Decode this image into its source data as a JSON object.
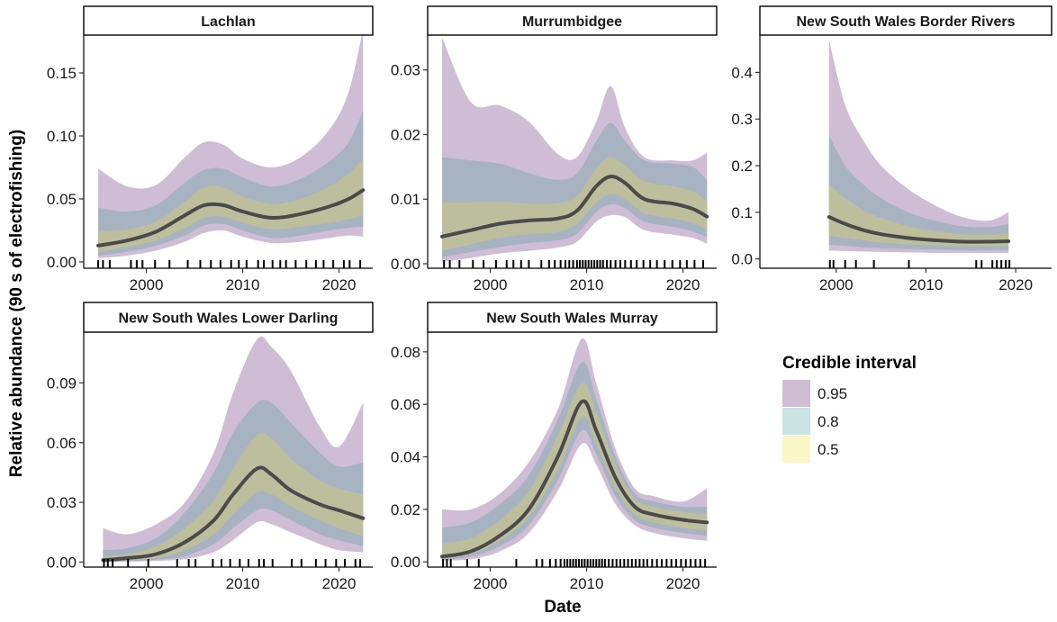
{
  "chart_data": {
    "type": "area",
    "xlabel": "Date",
    "ylabel": "Relative abundance (90 s of electrofishing)",
    "legend": {
      "title": "Credible interval",
      "position": "right",
      "items": [
        {
          "label": "0.95",
          "color": "#cfbdd5"
        },
        {
          "label": "0.8",
          "color": "#c9e4e4"
        },
        {
          "label": "0.5",
          "color": "#fbf6c6"
        }
      ]
    },
    "colors": {
      "band95": "#cfbdd5",
      "band80": "#a8b3c2",
      "band50": "#bcbe9c",
      "line": "#4a4a4a",
      "axis": "#000000"
    },
    "panels": [
      {
        "title": "Lachlan",
        "xlim": [
          1993.5,
          2023.5
        ],
        "ylim": [
          -0.005,
          0.18
        ],
        "xticks": [
          2000,
          2010,
          2020
        ],
        "xtick_labels": [
          "2000",
          "2010",
          "2020"
        ],
        "yticks": [
          0,
          0.05,
          0.1,
          0.15
        ],
        "ytick_labels": [
          "0.00",
          "0.05",
          "0.10",
          "0.15"
        ],
        "x": [
          1995,
          1998,
          2001,
          2004,
          2006,
          2008,
          2010,
          2013,
          2016,
          2019,
          2021,
          2022.5
        ],
        "median": [
          0.013,
          0.017,
          0.024,
          0.037,
          0.045,
          0.045,
          0.04,
          0.035,
          0.038,
          0.044,
          0.05,
          0.057
        ],
        "lo50": [
          0.008,
          0.012,
          0.017,
          0.027,
          0.035,
          0.036,
          0.031,
          0.026,
          0.028,
          0.031,
          0.034,
          0.037
        ],
        "hi50": [
          0.024,
          0.026,
          0.032,
          0.048,
          0.059,
          0.059,
          0.052,
          0.046,
          0.05,
          0.06,
          0.07,
          0.082
        ],
        "lo80": [
          0.005,
          0.008,
          0.013,
          0.021,
          0.029,
          0.03,
          0.025,
          0.019,
          0.021,
          0.025,
          0.027,
          0.028
        ],
        "hi80": [
          0.043,
          0.04,
          0.045,
          0.063,
          0.073,
          0.074,
          0.067,
          0.06,
          0.066,
          0.08,
          0.095,
          0.12
        ],
        "lo95": [
          0.003,
          0.005,
          0.009,
          0.016,
          0.023,
          0.025,
          0.02,
          0.015,
          0.016,
          0.019,
          0.021,
          0.02
        ],
        "hi95": [
          0.074,
          0.06,
          0.061,
          0.083,
          0.095,
          0.093,
          0.082,
          0.075,
          0.083,
          0.105,
          0.135,
          0.185
        ],
        "rug": [
          1995.0,
          1995.5,
          1996.2,
          1998.4,
          1999.0,
          1999.6,
          2000.9,
          2002.4,
          2004.3,
          2005.6,
          2006.7,
          2007.7,
          2008.8,
          2009.6,
          2010.4,
          2011.6,
          2012.2,
          2013.1,
          2013.9,
          2014.5,
          2015.5,
          2016.6,
          2017.6,
          2018.4,
          2019.4,
          2020.5,
          2021.1,
          2022.2
        ]
      },
      {
        "title": "Murrumbidgee",
        "xlim": [
          1993.5,
          2023.5
        ],
        "ylim": [
          -0.0007,
          0.0354
        ],
        "xticks": [
          2000,
          2010,
          2020
        ],
        "xtick_labels": [
          "2000",
          "2010",
          "2020"
        ],
        "yticks": [
          0,
          0.01,
          0.02,
          0.03
        ],
        "ytick_labels": [
          "0.00",
          "0.01",
          "0.02",
          "0.03"
        ],
        "x": [
          1995,
          1998,
          2001,
          2004,
          2007,
          2009,
          2011,
          2012.5,
          2014,
          2016,
          2019,
          2021,
          2022.5
        ],
        "median": [
          0.0042,
          0.0052,
          0.0062,
          0.0067,
          0.007,
          0.0082,
          0.012,
          0.0135,
          0.0125,
          0.01,
          0.0093,
          0.0085,
          0.0073
        ],
        "lo50": [
          0.002,
          0.003,
          0.004,
          0.0046,
          0.0049,
          0.0062,
          0.0095,
          0.0108,
          0.01,
          0.0078,
          0.007,
          0.0063,
          0.0053
        ],
        "hi50": [
          0.0095,
          0.0095,
          0.0096,
          0.0093,
          0.0094,
          0.0105,
          0.0148,
          0.0165,
          0.0152,
          0.0128,
          0.012,
          0.0112,
          0.0098
        ],
        "lo80": [
          0.001,
          0.0018,
          0.0026,
          0.0032,
          0.0036,
          0.0047,
          0.008,
          0.0092,
          0.0086,
          0.0065,
          0.0057,
          0.005,
          0.0041
        ],
        "hi80": [
          0.0165,
          0.016,
          0.0155,
          0.014,
          0.013,
          0.014,
          0.019,
          0.0218,
          0.019,
          0.016,
          0.0155,
          0.015,
          0.013
        ],
        "lo95": [
          0.0003,
          0.0009,
          0.0016,
          0.002,
          0.0025,
          0.0034,
          0.0065,
          0.0075,
          0.0072,
          0.0052,
          0.0045,
          0.004,
          0.0031
        ],
        "hi95": [
          0.035,
          0.025,
          0.0245,
          0.022,
          0.017,
          0.0165,
          0.022,
          0.0275,
          0.021,
          0.0165,
          0.016,
          0.016,
          0.0172
        ],
        "rug": [
          1995.2,
          1995.8,
          1996.8,
          1998.2,
          1999.3,
          2000.6,
          2001.7,
          2002.4,
          2003.2,
          2004.0,
          2005.3,
          2006.1,
          2006.7,
          2007.3,
          2007.8,
          2008.2,
          2008.6,
          2009.0,
          2009.3,
          2009.6,
          2009.9,
          2010.2,
          2010.5,
          2010.8,
          2011.1,
          2011.4,
          2011.7,
          2012.1,
          2012.5,
          2013.0,
          2013.5,
          2014.0,
          2014.6,
          2015.2,
          2015.9,
          2016.6,
          2017.3,
          2018.1,
          2018.9,
          2019.7,
          2020.4,
          2021.2,
          2022.1
        ]
      },
      {
        "title": "New South Wales Border Rivers",
        "xlim": [
          1991.5,
          2024.0
        ],
        "ylim": [
          -0.02,
          0.48
        ],
        "xticks": [
          2000,
          2010,
          2020
        ],
        "xtick_labels": [
          "2000",
          "2010",
          "2020"
        ],
        "yticks": [
          0,
          0.1,
          0.2,
          0.3,
          0.4
        ],
        "ytick_labels": [
          "0.0",
          "0.1",
          "0.2",
          "0.3",
          "0.4"
        ],
        "x": [
          1999.2,
          2001,
          2003,
          2005,
          2008,
          2011,
          2014,
          2017,
          2019.2
        ],
        "median": [
          0.09,
          0.075,
          0.062,
          0.053,
          0.045,
          0.04,
          0.037,
          0.037,
          0.038
        ],
        "lo50": [
          0.05,
          0.045,
          0.04,
          0.035,
          0.031,
          0.029,
          0.027,
          0.027,
          0.027
        ],
        "hi50": [
          0.16,
          0.13,
          0.105,
          0.088,
          0.07,
          0.06,
          0.053,
          0.052,
          0.055
        ],
        "lo80": [
          0.03,
          0.028,
          0.025,
          0.023,
          0.021,
          0.02,
          0.019,
          0.019,
          0.019
        ],
        "hi80": [
          0.265,
          0.2,
          0.16,
          0.13,
          0.1,
          0.082,
          0.07,
          0.068,
          0.075
        ],
        "lo95": [
          0.018,
          0.017,
          0.016,
          0.015,
          0.014,
          0.013,
          0.013,
          0.013,
          0.013
        ],
        "hi95": [
          0.47,
          0.33,
          0.255,
          0.2,
          0.15,
          0.115,
          0.09,
          0.082,
          0.1
        ],
        "rug": [
          1999.3,
          1999.7,
          2001.0,
          2002.2,
          2004.2,
          2008.1,
          2015.6,
          2016.2,
          2017.4,
          2017.9,
          2018.4,
          2018.9,
          2019.3
        ]
      },
      {
        "title": "New South Wales Lower Darling",
        "xlim": [
          1993.5,
          2023.5
        ],
        "ylim": [
          -0.0025,
          0.1155
        ],
        "xticks": [
          2000,
          2010,
          2020
        ],
        "xtick_labels": [
          "2000",
          "2010",
          "2020"
        ],
        "yticks": [
          0,
          0.03,
          0.06,
          0.09
        ],
        "ytick_labels": [
          "0.00",
          "0.03",
          "0.06",
          "0.09"
        ],
        "x": [
          1995.5,
          1998,
          2001,
          2004,
          2007,
          2009,
          2011.5,
          2013,
          2015,
          2018,
          2020,
          2022.5
        ],
        "median": [
          0.001,
          0.002,
          0.004,
          0.01,
          0.021,
          0.034,
          0.047,
          0.044,
          0.036,
          0.029,
          0.026,
          0.022
        ],
        "lo50": [
          0.0005,
          0.001,
          0.002,
          0.006,
          0.014,
          0.024,
          0.035,
          0.034,
          0.028,
          0.021,
          0.017,
          0.013
        ],
        "hi50": [
          0.003,
          0.004,
          0.008,
          0.017,
          0.031,
          0.047,
          0.064,
          0.062,
          0.052,
          0.041,
          0.037,
          0.034
        ],
        "lo80": [
          0.0002,
          0.0005,
          0.0012,
          0.003,
          0.009,
          0.017,
          0.026,
          0.026,
          0.021,
          0.014,
          0.011,
          0.008
        ],
        "hi80": [
          0.006,
          0.007,
          0.012,
          0.025,
          0.045,
          0.065,
          0.08,
          0.08,
          0.07,
          0.055,
          0.048,
          0.05
        ],
        "lo95": [
          0.0,
          0.0002,
          0.0006,
          0.0015,
          0.005,
          0.011,
          0.02,
          0.019,
          0.015,
          0.009,
          0.006,
          0.005
        ],
        "hi95": [
          0.017,
          0.014,
          0.019,
          0.03,
          0.055,
          0.085,
          0.112,
          0.108,
          0.096,
          0.068,
          0.058,
          0.08
        ],
        "rug": [
          1995.6,
          1996.0,
          1996.5,
          1998.1,
          2000.2,
          2003.2,
          2004.4,
          2005.1,
          2006.9,
          2007.8,
          2008.7,
          2009.7,
          2010.6,
          2011.7,
          2012.2,
          2013.1,
          2015.1,
          2016.1,
          2017.6,
          2018.6,
          2019.7,
          2020.6,
          2021.7,
          2022.2
        ]
      },
      {
        "title": "New South Wales Murray",
        "xlim": [
          1993.5,
          2023.5
        ],
        "ylim": [
          -0.002,
          0.0875
        ],
        "xticks": [
          2000,
          2010,
          2020
        ],
        "xtick_labels": [
          "2000",
          "2010",
          "2020"
        ],
        "yticks": [
          0,
          0.02,
          0.04,
          0.06,
          0.08
        ],
        "ytick_labels": [
          "0.00",
          "0.02",
          "0.04",
          "0.06",
          "0.08"
        ],
        "x": [
          1995,
          1998,
          2001,
          2004,
          2007,
          2009.5,
          2011,
          2013,
          2015,
          2017,
          2020,
          2022.5
        ],
        "median": [
          0.002,
          0.004,
          0.01,
          0.02,
          0.04,
          0.061,
          0.05,
          0.032,
          0.021,
          0.018,
          0.016,
          0.015
        ],
        "lo50": [
          0.0012,
          0.003,
          0.008,
          0.017,
          0.035,
          0.055,
          0.045,
          0.028,
          0.018,
          0.015,
          0.013,
          0.012
        ],
        "hi50": [
          0.007,
          0.009,
          0.016,
          0.027,
          0.048,
          0.068,
          0.057,
          0.037,
          0.024,
          0.021,
          0.019,
          0.018
        ],
        "lo80": [
          0.0008,
          0.002,
          0.006,
          0.014,
          0.031,
          0.05,
          0.041,
          0.025,
          0.016,
          0.013,
          0.011,
          0.01
        ],
        "hi80": [
          0.013,
          0.015,
          0.022,
          0.033,
          0.054,
          0.076,
          0.062,
          0.04,
          0.026,
          0.023,
          0.021,
          0.021
        ],
        "lo95": [
          0.0005,
          0.001,
          0.004,
          0.011,
          0.027,
          0.045,
          0.037,
          0.022,
          0.014,
          0.011,
          0.009,
          0.008
        ],
        "hi95": [
          0.02,
          0.02,
          0.026,
          0.038,
          0.058,
          0.085,
          0.068,
          0.043,
          0.028,
          0.025,
          0.023,
          0.028
        ],
        "rug": [
          1995.1,
          1995.5,
          1995.9,
          1997.6,
          1998.8,
          2002.7,
          2004.8,
          2005.4,
          2006.2,
          2006.8,
          2007.3,
          2007.7,
          2008.0,
          2008.3,
          2008.6,
          2008.9,
          2009.2,
          2009.5,
          2009.8,
          2010.1,
          2010.4,
          2010.7,
          2011.0,
          2011.3,
          2011.6,
          2011.9,
          2012.3,
          2012.7,
          2013.1,
          2013.5,
          2013.9,
          2014.3,
          2014.7,
          2015.1,
          2015.5,
          2015.9,
          2016.3,
          2016.8,
          2017.3,
          2017.8,
          2018.3,
          2018.8,
          2019.3,
          2019.8,
          2020.3,
          2020.8,
          2021.3,
          2021.8,
          2022.3
        ]
      }
    ]
  }
}
